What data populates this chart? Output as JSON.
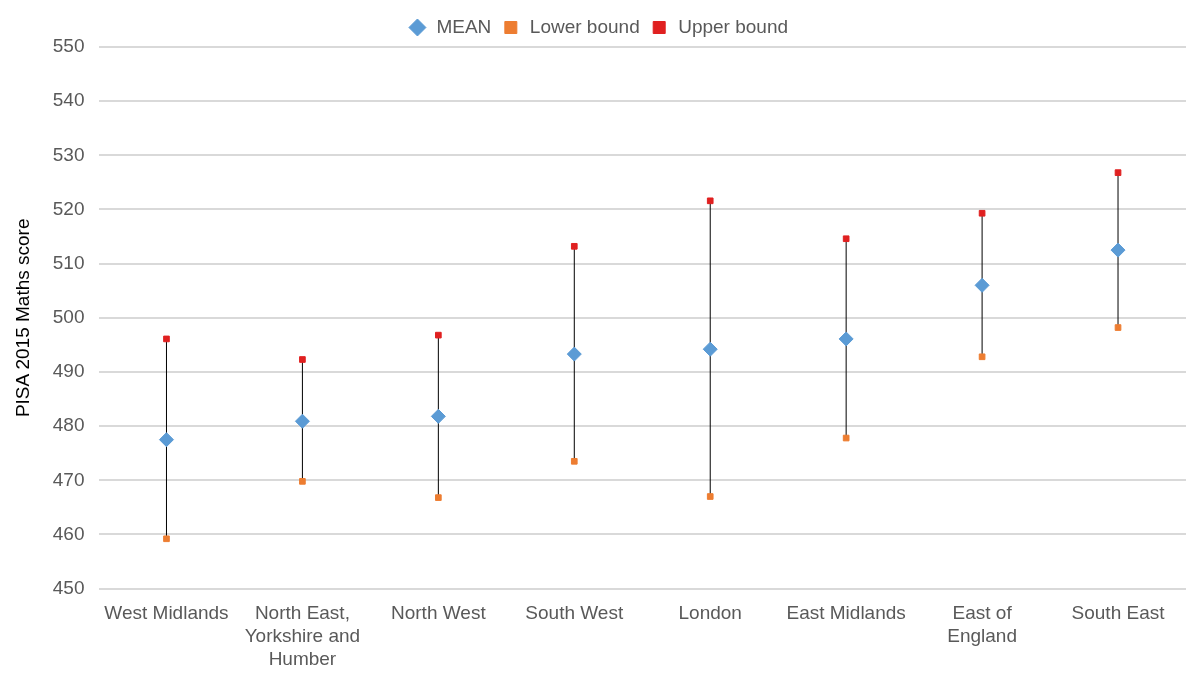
{
  "chart_data": {
    "type": "scatter",
    "ylabel": "PISA 2015 Maths score",
    "categories": [
      "West Midlands",
      "North East, Yorkshire and Humber",
      "North West",
      "South West",
      "London",
      "East Midlands",
      "East of England",
      "South East"
    ],
    "series": [
      {
        "name": "MEAN",
        "color": "#5b9bd5",
        "marker": "diamond",
        "values": [
          477.5,
          480.9,
          481.8,
          493.3,
          494.2,
          496.1,
          506.0,
          512.5
        ]
      },
      {
        "name": "Lower bound",
        "color": "#ed7d31",
        "marker": "square",
        "values": [
          459.2,
          469.8,
          466.8,
          473.5,
          467.0,
          477.8,
          492.8,
          498.2
        ]
      },
      {
        "name": "Upper bound",
        "color": "#e02020",
        "marker": "square",
        "values": [
          496.1,
          492.3,
          496.8,
          513.2,
          521.6,
          514.6,
          519.3,
          526.8
        ]
      }
    ],
    "ylim": [
      450,
      550
    ],
    "yticks": [
      450,
      460,
      470,
      480,
      490,
      500,
      510,
      520,
      530,
      540,
      550
    ],
    "grid": "y",
    "legend": "top"
  }
}
